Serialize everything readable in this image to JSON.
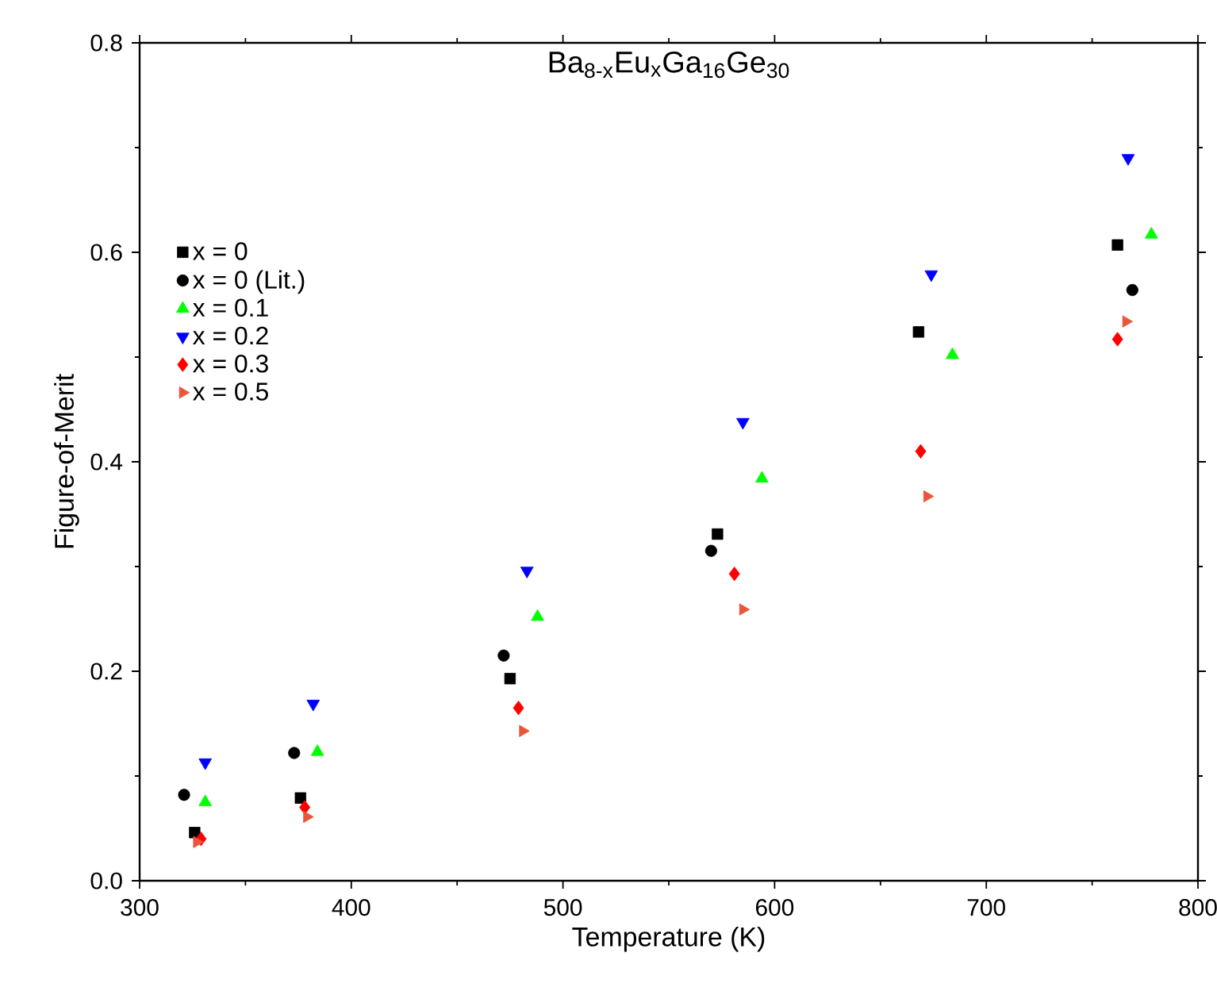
{
  "chart_data": {
    "type": "scatter",
    "title": "Ba$_{8-x}$Eu$_{x}$Ga$_{16}$Ge$_{30}$",
    "xlabel": "Temperature (K)",
    "ylabel": "Figure-of-Merit",
    "xlim": [
      300,
      800
    ],
    "xticks": [
      300,
      400,
      500,
      600,
      700,
      800
    ],
    "ylim": [
      0,
      0.8
    ],
    "yticks": [
      {
        "value": 0,
        "label": "0.0"
      },
      0.2,
      0.4,
      0.6,
      0.8
    ],
    "legend": "left",
    "grid": false,
    "series": [
      {
        "name": "x = 0",
        "color": "#000000",
        "marker": "square",
        "x": [
          326,
          376,
          475,
          573,
          668,
          762
        ],
        "values": [
          0.046,
          0.079,
          0.193,
          0.331,
          0.524,
          0.607
        ]
      },
      {
        "name": "x = 0 (Lit.)",
        "color": "#000000",
        "marker": "circle",
        "x": [
          321,
          373,
          472,
          570,
          769
        ],
        "values": [
          0.082,
          0.122,
          0.215,
          0.315,
          0.564
        ]
      },
      {
        "name": "x = 0.1",
        "color": "#00ff00",
        "marker": "triangle",
        "x": [
          331,
          384,
          488,
          594,
          684,
          778
        ],
        "values": [
          0.075,
          0.123,
          0.252,
          0.384,
          0.502,
          0.617
        ]
      },
      {
        "name": "x = 0.2",
        "color": "#0000ff",
        "marker": "triangle-down",
        "x": [
          331,
          382,
          483,
          585,
          674,
          767
        ],
        "values": [
          0.113,
          0.169,
          0.296,
          0.438,
          0.579,
          0.69
        ]
      },
      {
        "name": "x = 0.3",
        "color": "#ff0000",
        "marker": "diamond",
        "x": [
          329,
          378,
          479,
          581,
          669,
          762
        ],
        "values": [
          0.04,
          0.07,
          0.165,
          0.293,
          0.41,
          0.517
        ]
      },
      {
        "name": "x = 0.5",
        "color": "#e8553a",
        "marker": "triangle-right",
        "x": [
          327,
          379,
          481,
          585,
          672,
          766
        ],
        "values": [
          0.037,
          0.061,
          0.143,
          0.259,
          0.367,
          0.534
        ]
      }
    ]
  }
}
